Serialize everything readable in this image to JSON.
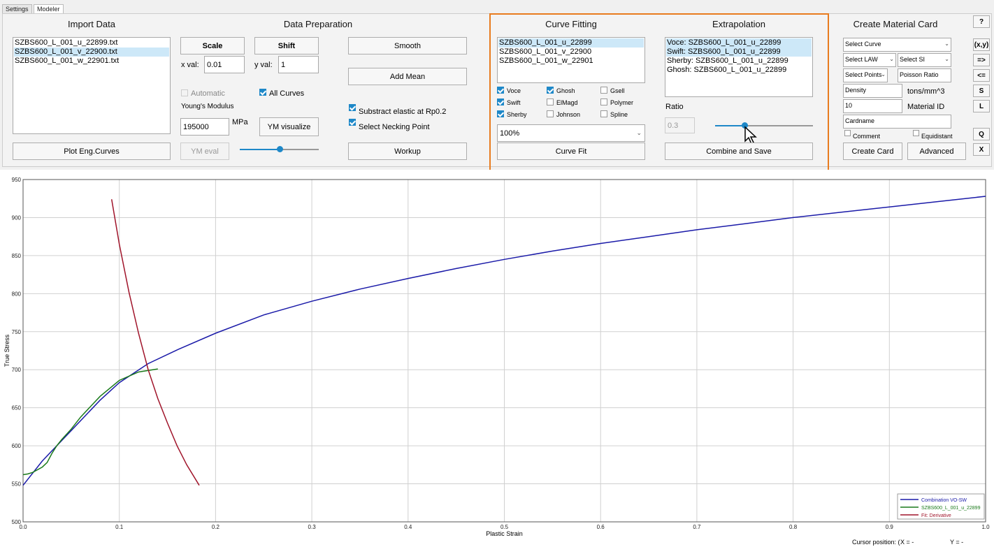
{
  "tabs": [
    "Settings",
    "Modeler"
  ],
  "import": {
    "title": "Import Data",
    "files": [
      "SZBS600_L_001_u_22899.txt",
      "SZBS600_L_001_v_22900.txt",
      "SZBS600_L_001_w_22901.txt"
    ],
    "selected_index": 1,
    "plot_button": "Plot Eng.Curves"
  },
  "prep": {
    "title": "Data Preparation",
    "scale_button": "Scale",
    "shift_button": "Shift",
    "x_val_label": "x val:",
    "x_val": "0.01",
    "y_val_label": "y val:",
    "y_val": "1",
    "automatic_label": "Automatic",
    "all_curves_label": "All Curves",
    "youngs_label": "Young's Modulus",
    "youngs_value": "195000",
    "mpa_label": "MPa",
    "ym_visualize": "YM visualize",
    "ym_eval": "YM eval",
    "ym_slider_level": 0.5,
    "smooth": "Smooth",
    "add_mean": "Add Mean",
    "substract_label": "Substract elastic at Rp0.2",
    "necking_label": "Select Necking Point",
    "workup": "Workup"
  },
  "fitting": {
    "title": "Curve Fitting",
    "curves": [
      "SZBS600_L_001_u_22899",
      "SZBS600_L_001_v_22900",
      "SZBS600_L_001_w_22901"
    ],
    "selected_index": 0,
    "methods": [
      {
        "label": "Voce",
        "checked": true
      },
      {
        "label": "Ghosh",
        "checked": true
      },
      {
        "label": "Gsell",
        "checked": false
      },
      {
        "label": "Swift",
        "checked": true
      },
      {
        "label": "ElMagd",
        "checked": false
      },
      {
        "label": "Polymer",
        "checked": false
      },
      {
        "label": "Sherby",
        "checked": true
      },
      {
        "label": "Johnson",
        "checked": false
      },
      {
        "label": "Spline",
        "checked": false
      }
    ],
    "percent": "100%",
    "curve_fit": "Curve Fit"
  },
  "extrap": {
    "title": "Extrapolation",
    "items": [
      "Voce: SZBS600_L_001_u_22899",
      "Swift: SZBS600_L_001_u_22899",
      "Sherby: SZBS600_L_001_u_22899",
      "Ghosh: SZBS600_L_001_u_22899"
    ],
    "selected": [
      0,
      1
    ],
    "ratio_label": "Ratio",
    "ratio_value": "0.3",
    "ratio_slider_level": 0.3,
    "combine": "Combine and Save"
  },
  "card": {
    "title": "Create Material Card",
    "select_curve": "Select Curve",
    "select_law": "Select LAW",
    "select_si": "Select SI",
    "select_points": "Select Points",
    "poisson": "Poisson Ratio",
    "density": "Density",
    "density_unit": "tons/mm^3",
    "material_id_value": "10",
    "material_id_label": "Material ID",
    "cardname": "Cardname",
    "comment_label": "Comment",
    "equidistant_label": "Equidistant",
    "create_card": "Create Card",
    "advanced": "Advanced"
  },
  "side_buttons": [
    "?",
    "(x,y)",
    "=>",
    "<=",
    "S",
    "L",
    "Q",
    "X"
  ],
  "status": {
    "cursor_label": "Cursor position: (",
    "x_label": "X = -",
    "y_label": "Y = -"
  },
  "chart_data": {
    "type": "line",
    "xlabel": "Plastic Strain",
    "ylabel": "True Stress",
    "xlim": [
      0,
      1.0
    ],
    "ylim": [
      500,
      950
    ],
    "x_ticks": [
      0.0,
      0.1,
      0.2,
      0.3,
      0.4,
      0.5,
      0.6,
      0.7,
      0.8,
      0.9,
      1.0
    ],
    "x_tick_labels": [
      "0.0",
      "0.1",
      "0.2",
      "0.3",
      "0.4",
      "0.5",
      "0.6",
      "0.7",
      "0.8",
      "0.9",
      "1.0"
    ],
    "y_ticks": [
      500,
      550,
      600,
      650,
      700,
      750,
      800,
      850,
      900,
      950
    ],
    "grid": true,
    "legend_position": "bottom-right",
    "series": [
      {
        "name": "Combination VO-SW",
        "color": "#1a1aa8",
        "x": [
          0.0,
          0.02,
          0.05,
          0.08,
          0.1,
          0.13,
          0.16,
          0.2,
          0.25,
          0.3,
          0.35,
          0.4,
          0.45,
          0.5,
          0.55,
          0.6,
          0.65,
          0.7,
          0.75,
          0.8,
          0.85,
          0.9,
          0.95,
          1.0
        ],
        "y": [
          548,
          580,
          620,
          660,
          683,
          708,
          726,
          748,
          772,
          790,
          806,
          820,
          833,
          845,
          856,
          866,
          875,
          884,
          892,
          900,
          907,
          914,
          921,
          928
        ]
      },
      {
        "name": "SZBS600_L_001_u_22899",
        "color": "#1a7a1a",
        "x": [
          0.0,
          0.005,
          0.01,
          0.02,
          0.025,
          0.03,
          0.035,
          0.04,
          0.05,
          0.06,
          0.08,
          0.1,
          0.12,
          0.14
        ],
        "y": [
          562,
          563,
          565,
          572,
          578,
          590,
          600,
          608,
          622,
          638,
          665,
          686,
          697,
          701
        ]
      },
      {
        "name": "Fit: Derivative",
        "color": "#a0142a",
        "x": [
          0.092,
          0.1,
          0.11,
          0.12,
          0.13,
          0.14,
          0.15,
          0.16,
          0.17,
          0.183
        ],
        "y": [
          924,
          865,
          802,
          748,
          700,
          662,
          630,
          600,
          575,
          548
        ]
      }
    ]
  }
}
